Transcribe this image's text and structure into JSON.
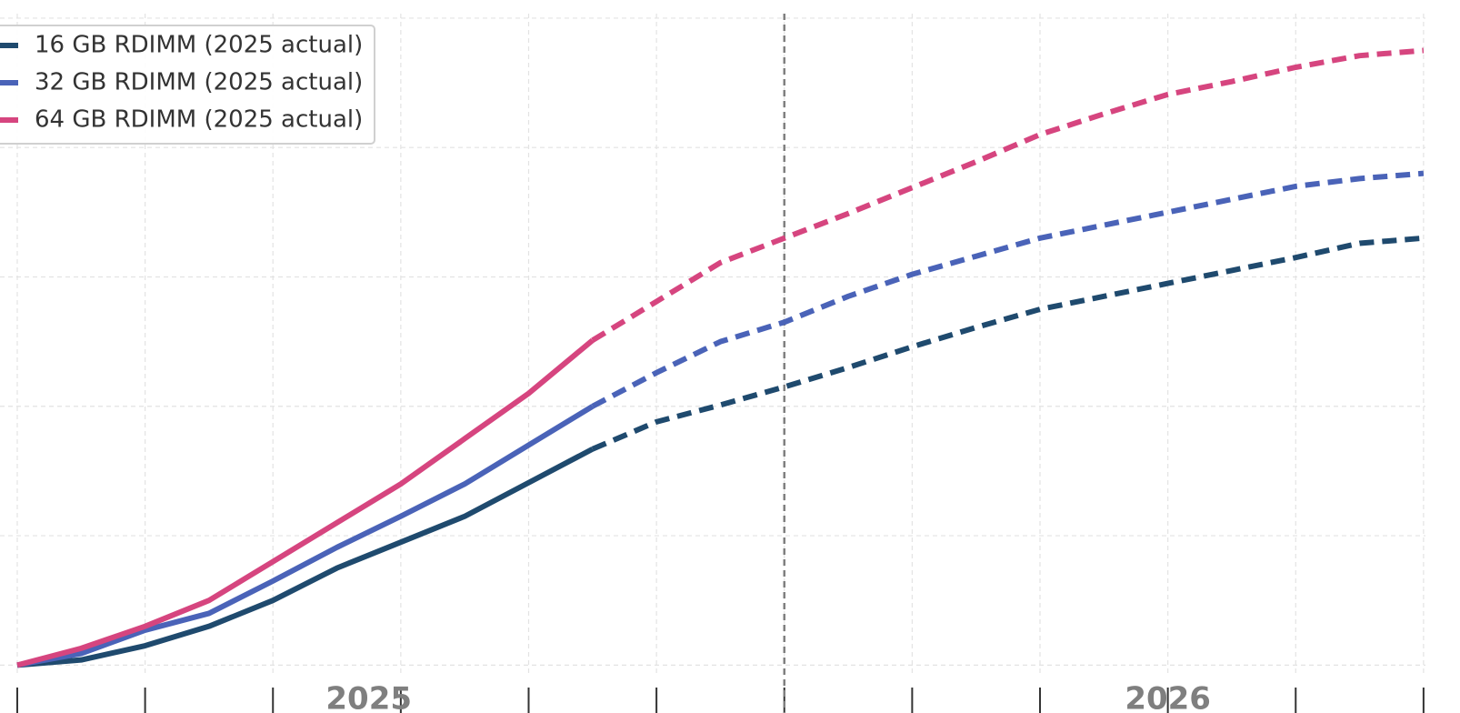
{
  "chart_data": {
    "type": "line",
    "x": [
      0,
      1,
      2,
      3,
      4,
      5,
      6,
      7,
      8,
      9,
      10,
      11,
      12,
      13,
      14,
      15,
      16,
      17,
      18,
      19,
      20,
      21,
      22
    ],
    "series": [
      {
        "name": "16 GB RDIMM (2025 actual)",
        "color": "#1f4a6e",
        "dashed": false,
        "values": [
          0,
          0.04,
          0.15,
          0.3,
          0.5,
          0.75,
          0.95,
          1.15,
          1.41,
          1.67,
          null,
          null,
          null,
          null,
          null,
          null,
          null,
          null,
          null,
          null,
          null,
          null,
          null
        ]
      },
      {
        "name": "32 GB RDIMM (2025 actual)",
        "color": "#4a63b8",
        "dashed": false,
        "values": [
          0,
          0.09,
          0.27,
          0.4,
          0.65,
          0.91,
          1.15,
          1.4,
          1.7,
          2.0,
          null,
          null,
          null,
          null,
          null,
          null,
          null,
          null,
          null,
          null,
          null,
          null,
          null
        ]
      },
      {
        "name": "64 GB RDIMM (2025 actual)",
        "color": "#d6457f",
        "dashed": false,
        "values": [
          0,
          0.13,
          0.3,
          0.5,
          0.8,
          1.1,
          1.4,
          1.75,
          2.1,
          2.51,
          null,
          null,
          null,
          null,
          null,
          null,
          null,
          null,
          null,
          null,
          null,
          null,
          null
        ]
      },
      {
        "color": "#1f4a6e",
        "dashed": true,
        "values": [
          null,
          null,
          null,
          null,
          null,
          null,
          null,
          null,
          null,
          1.67,
          1.88,
          2.01,
          2.15,
          2.3,
          2.46,
          2.61,
          2.75,
          2.85,
          2.95,
          3.05,
          3.15,
          3.26,
          3.3
        ]
      },
      {
        "color": "#4a63b8",
        "dashed": true,
        "values": [
          null,
          null,
          null,
          null,
          null,
          null,
          null,
          null,
          null,
          2.0,
          2.26,
          2.5,
          2.65,
          2.85,
          3.02,
          3.16,
          3.3,
          3.4,
          3.5,
          3.6,
          3.7,
          3.76,
          3.8
        ]
      },
      {
        "color": "#d6457f",
        "dashed": true,
        "values": [
          null,
          null,
          null,
          null,
          null,
          null,
          null,
          null,
          null,
          2.51,
          2.81,
          3.11,
          3.3,
          3.49,
          3.69,
          3.89,
          4.1,
          4.26,
          4.41,
          4.51,
          4.62,
          4.71,
          4.75
        ]
      }
    ],
    "xlim": [
      -0.27,
      22.03
    ],
    "ylim": [
      -0.37,
      5.14
    ],
    "xticks": [
      {
        "value": 5.5,
        "label": "2025"
      },
      {
        "value": 18,
        "label": "2026"
      }
    ],
    "yticks": [
      0,
      1,
      2,
      3,
      4,
      5
    ],
    "vline": 12,
    "grid": true,
    "legend": "upper left"
  }
}
